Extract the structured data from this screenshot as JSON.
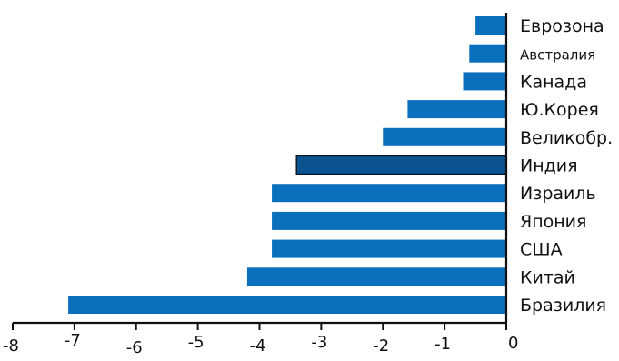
{
  "chart_data": {
    "type": "bar",
    "orientation": "horizontal",
    "categories": [
      "Еврозона",
      "Австралия",
      "Канада",
      "Ю.Корея",
      "Великобр.",
      "Индия",
      "Израиль",
      "Япония",
      "США",
      "Китай",
      "Бразилия"
    ],
    "values": [
      -0.5,
      -0.6,
      -0.7,
      -1.6,
      -2.0,
      -3.4,
      -3.8,
      -3.8,
      -3.8,
      -4.2,
      -7.1
    ],
    "highlighted": [
      "Индия"
    ],
    "xlim": [
      -8,
      0
    ],
    "xticks": [
      "-8",
      "-7",
      "-6",
      "-5",
      "-4",
      "-3",
      "-2",
      "-1",
      "0"
    ],
    "grid": false,
    "legend": "none",
    "title": "",
    "xlabel": "",
    "ylabel": ""
  },
  "colors": {
    "bar": "#0a6fbd",
    "highlight": "#0b5390",
    "highlight_outline": "#0a1a2a"
  }
}
